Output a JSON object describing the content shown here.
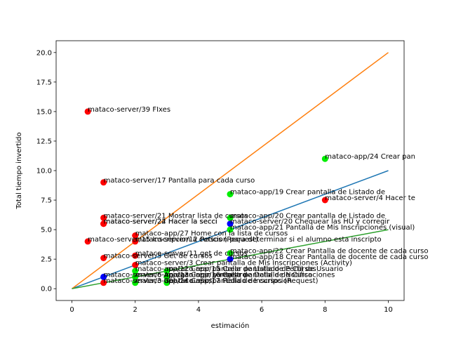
{
  "chart_data": {
    "type": "scatter",
    "xlabel": "estimación",
    "ylabel": "Total tiempo invertido",
    "xlim": [
      -0.5,
      10.5
    ],
    "ylim": [
      -1.0,
      21.0
    ],
    "xticks": [
      0,
      2,
      4,
      6,
      8,
      10
    ],
    "xtick_labels": [
      "0",
      "2",
      "4",
      "6",
      "8",
      "10"
    ],
    "yticks": [
      0.0,
      2.5,
      5.0,
      7.5,
      10.0,
      12.5,
      15.0,
      17.5,
      20.0
    ],
    "ytick_labels": [
      "0.0",
      "2.5",
      "5.0",
      "7.5",
      "10.0",
      "12.5",
      "15.0",
      "17.5",
      "20.0"
    ],
    "grid": false,
    "lines": [
      {
        "color": "#1f77b4",
        "x": [
          0,
          10
        ],
        "y": [
          0,
          10
        ]
      },
      {
        "color": "#ff7f0e",
        "x": [
          0,
          10
        ],
        "y": [
          0,
          20
        ]
      },
      {
        "color": "#2ca02c",
        "x": [
          0,
          1,
          10
        ],
        "y": [
          0,
          0.5,
          5
        ]
      }
    ],
    "points": [
      {
        "x": 0.5,
        "y": 15.0,
        "color": "#ff0000",
        "label": "mataco-server/39 FIxes"
      },
      {
        "x": 1,
        "y": 9.0,
        "color": "#ff0000",
        "label": "mataco-server/17 Pantalla para cada curso"
      },
      {
        "x": 1,
        "y": 6.0,
        "color": "#ff0000",
        "label": "mataco-server/21 Mostrar lista de cursos"
      },
      {
        "x": 1,
        "y": 5.5,
        "color": "#ff0000",
        "label": "mataco-server/22 Hacer la secci"
      },
      {
        "x": 1,
        "y": 5.5,
        "color": "#ff0000",
        "label": "mataco-server/24 Hacer la secci"
      },
      {
        "x": 0.5,
        "y": 4.0,
        "color": "#ff0000",
        "label": "mataco-server/15 Inscripcion a cursos (Request)"
      },
      {
        "x": 1,
        "y": 2.6,
        "color": "#ff0000",
        "label": "mataco-server/5 Get de cursos"
      },
      {
        "x": 1,
        "y": 0.5,
        "color": "#ff0000",
        "label": "mataco-server/3 Get de cursos"
      },
      {
        "x": 2,
        "y": 4.5,
        "color": "#ff0000",
        "label": "mataco-app/27 Home con la lista de cursos"
      },
      {
        "x": 2,
        "y": 4.0,
        "color": "#ff0000",
        "label": "mataco-server/12 Peticion para determinar si el alumno esta inscripto"
      },
      {
        "x": 2,
        "y": 2.8,
        "color": "#ff0000",
        "label": "mataco-server/11 get de cursos"
      },
      {
        "x": 2,
        "y": 2.0,
        "color": "#ff0000",
        "label": "mataco-server/3 Crear pantalla de Mis Inscripciones (Activity)"
      },
      {
        "x": 8,
        "y": 7.5,
        "color": "#ff0000",
        "label": "mataco-server/4 Hacer te"
      },
      {
        "x": 1,
        "y": 1.0,
        "color": "#0000ff",
        "label": "mataco-server/6 Agregar login y registro"
      },
      {
        "x": 5,
        "y": 5.5,
        "color": "#0000ff",
        "label": "mataco-server/20 Chequear las HU y corregir"
      },
      {
        "x": 5,
        "y": 2.5,
        "color": "#0000ff",
        "label": "mataco-app/18 Crear Pantalla de docente de cada curso"
      },
      {
        "x": 2,
        "y": 1.5,
        "color": "#00ee00",
        "label": "mataco-app/12 Crear pantalla de Listado de Cursos"
      },
      {
        "x": 2,
        "y": 1.0,
        "color": "#00ee00",
        "label": "mataco-app/13 Crear pantalla de Detalle de Curso"
      },
      {
        "x": 2,
        "y": 0.5,
        "color": "#00ee00",
        "label": "mataco-app/14 Crear pantalla de Inscripcion"
      },
      {
        "x": 3,
        "y": 1.5,
        "color": "#00ee00",
        "label": "mataco-app/15 Crear pantalla de Perfil de Usuario"
      },
      {
        "x": 3,
        "y": 1.0,
        "color": "#00ee00",
        "label": "mataco-app/16 Crear pantalla de Notificaciones"
      },
      {
        "x": 3,
        "y": 0.5,
        "color": "#00ee00",
        "label": "mataco-app/17 Pedido de cursos (Request)"
      },
      {
        "x": 5,
        "y": 8.0,
        "color": "#00ee00",
        "label": "mataco-app/19 Crear pantalla de Listado de"
      },
      {
        "x": 5,
        "y": 6.0,
        "color": "#00ee00",
        "label": "mataco-app/20 Crear pantalla de Listado de"
      },
      {
        "x": 5,
        "y": 5.0,
        "color": "#00ee00",
        "label": "mataco-app/21 Pantalla de Mis Inscripciones (visual)"
      },
      {
        "x": 5,
        "y": 3.0,
        "color": "#00ee00",
        "label": "mataco-app/22 Crear Pantalla de docente de cada curso"
      },
      {
        "x": 8,
        "y": 11.0,
        "color": "#00ee00",
        "label": "mataco-app/24 Crear pan"
      }
    ]
  }
}
